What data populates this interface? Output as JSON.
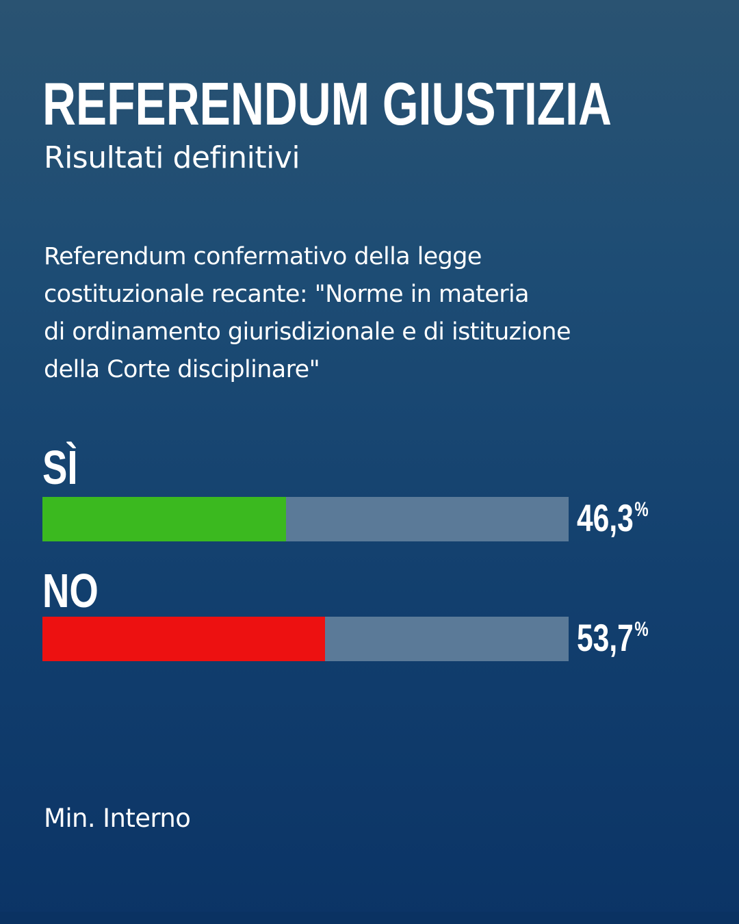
{
  "header": {
    "title": "REFERENDUM GIUSTIZIA",
    "subtitle": "Risultati definitivi"
  },
  "description": "Referendum confermativo della legge\ncostituzionale recante: \"Norme in materia\ndi ordinamento giurisdizionale e di istituzione\ndella Corte disciplinare\"",
  "source": "Min. Interno",
  "colors": {
    "yes": "#3bb91f",
    "no": "#ed1111",
    "track": "#5b7a98"
  },
  "chart_data": {
    "type": "bar",
    "orientation": "horizontal",
    "categories": [
      "SÌ",
      "NO"
    ],
    "values": [
      46.3,
      53.7
    ],
    "value_labels": [
      "46,3",
      "53,7"
    ],
    "unit": "%",
    "xlim": [
      0,
      100
    ],
    "colors": [
      "#3bb91f",
      "#ed1111"
    ],
    "grid": false,
    "legend": "none"
  }
}
